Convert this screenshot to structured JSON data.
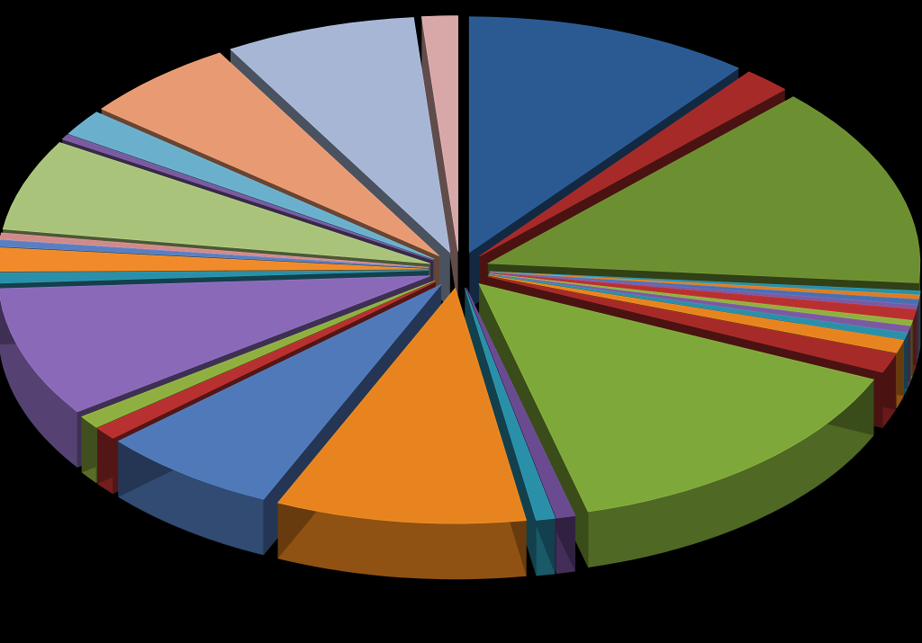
{
  "chart_data": {
    "type": "pie",
    "title": "",
    "legend": "none",
    "labels_shown": false,
    "exploded": true,
    "projection": "3d",
    "start": "top, clockwise",
    "slices": [
      {
        "value": 12.0,
        "color": "#2b5a93"
      },
      {
        "value": 2.0,
        "color": "#a52a28"
      },
      {
        "value": 15.5,
        "color": "#6c8f32"
      },
      {
        "value": 0.3,
        "color": "#2a8fa8"
      },
      {
        "value": 0.3,
        "color": "#e07b20"
      },
      {
        "value": 0.4,
        "color": "#4a6fb0"
      },
      {
        "value": 0.3,
        "color": "#7a5aa0"
      },
      {
        "value": 0.8,
        "color": "#b83030"
      },
      {
        "value": 0.4,
        "color": "#8fb040"
      },
      {
        "value": 0.5,
        "color": "#7a5aa0"
      },
      {
        "value": 0.5,
        "color": "#2a8fa8"
      },
      {
        "value": 1.0,
        "color": "#e8841f"
      },
      {
        "value": 1.5,
        "color": "#a52a28"
      },
      {
        "value": 16.0,
        "color": "#7fa83a"
      },
      {
        "value": 0.8,
        "color": "#6a4a90"
      },
      {
        "value": 0.8,
        "color": "#2a8fa8"
      },
      {
        "value": 10.5,
        "color": "#e8841f"
      },
      {
        "value": 7.5,
        "color": "#4f79b8"
      },
      {
        "value": 1.0,
        "color": "#b83030"
      },
      {
        "value": 1.0,
        "color": "#8fb040"
      },
      {
        "value": 10.0,
        "color": "#8a6ab8"
      },
      {
        "value": 0.8,
        "color": "#2a8fa8"
      },
      {
        "value": 1.8,
        "color": "#f08a2a"
      },
      {
        "value": 0.5,
        "color": "#5a7fc0"
      },
      {
        "value": 0.5,
        "color": "#d08a8a"
      },
      {
        "value": 7.0,
        "color": "#a9c47a"
      },
      {
        "value": 0.4,
        "color": "#7a5aa0"
      },
      {
        "value": 2.0,
        "color": "#6ab0cc"
      },
      {
        "value": 6.5,
        "color": "#e89a72"
      },
      {
        "value": 8.0,
        "color": "#a6b6d4"
      },
      {
        "value": 1.5,
        "color": "#d8a8a8"
      }
    ]
  }
}
